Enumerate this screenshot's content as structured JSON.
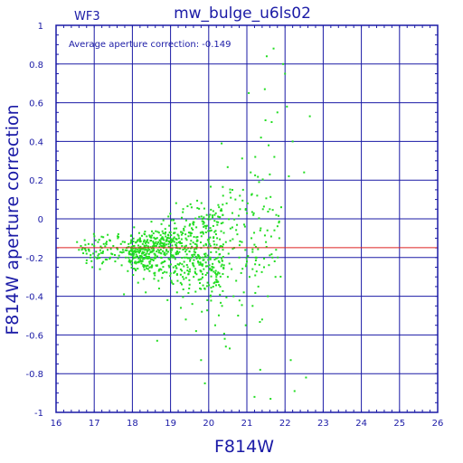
{
  "chart_data": {
    "type": "scatter",
    "title": "mw_bulge_u6ls02",
    "panel_label": "WF3",
    "annotation": "Average aperture correction:  -0.149",
    "xlabel": "F814W",
    "ylabel": "F814W aperture correction",
    "xlim": [
      16,
      26
    ],
    "ylim": [
      -1,
      1
    ],
    "x_ticks": [
      "16",
      "17",
      "18",
      "19",
      "20",
      "21",
      "22",
      "23",
      "24",
      "25",
      "26"
    ],
    "y_ticks": [
      "1",
      "0.8",
      "0.6",
      "0.4",
      "0.2",
      "0",
      "-0.2",
      "-0.4",
      "-0.6",
      "-0.8",
      "-1"
    ],
    "grid": true,
    "reference_line_y": -0.149,
    "colors": {
      "axes": "#1a1aa6",
      "points": "#22dd22",
      "reference_line": "#dd2222"
    },
    "series": [
      {
        "color": "#22dd22",
        "points": [
          [
            16.55,
            -0.12
          ],
          [
            16.6,
            -0.16
          ],
          [
            16.7,
            -0.15
          ],
          [
            16.75,
            -0.11
          ],
          [
            16.8,
            -0.18
          ],
          [
            16.85,
            -0.13
          ],
          [
            16.9,
            -0.2
          ],
          [
            16.95,
            -0.25
          ],
          [
            17.0,
            -0.14
          ],
          [
            17.05,
            -0.17
          ],
          [
            17.1,
            -0.12
          ],
          [
            17.1,
            -0.19
          ],
          [
            17.15,
            -0.26
          ],
          [
            17.2,
            -0.15
          ],
          [
            17.25,
            -0.13
          ],
          [
            17.3,
            -0.21
          ],
          [
            17.35,
            -0.16
          ],
          [
            17.4,
            -0.11
          ],
          [
            17.45,
            -0.18
          ],
          [
            17.5,
            -0.14
          ],
          [
            17.55,
            -0.22
          ],
          [
            17.6,
            -0.15
          ],
          [
            17.62,
            -0.1
          ],
          [
            17.65,
            -0.19
          ],
          [
            17.7,
            -0.13
          ],
          [
            17.72,
            -0.24
          ],
          [
            17.75,
            -0.16
          ],
          [
            17.78,
            -0.39
          ],
          [
            17.8,
            -0.12
          ],
          [
            17.83,
            -0.2
          ],
          [
            17.85,
            -0.15
          ],
          [
            17.88,
            -0.27
          ],
          [
            17.9,
            -0.13
          ],
          [
            17.92,
            -0.18
          ],
          [
            17.95,
            -0.22
          ],
          [
            17.97,
            -0.11
          ],
          [
            18.0,
            -0.16
          ],
          [
            18.02,
            -0.29
          ],
          [
            18.05,
            -0.14
          ],
          [
            18.08,
            -0.2
          ],
          [
            18.1,
            -0.12
          ],
          [
            18.12,
            -0.17
          ],
          [
            18.15,
            -0.33
          ],
          [
            18.17,
            -0.15
          ],
          [
            18.2,
            -0.1
          ],
          [
            18.22,
            -0.22
          ],
          [
            18.25,
            -0.18
          ],
          [
            18.27,
            -0.13
          ],
          [
            18.3,
            -0.25
          ],
          [
            18.32,
            -0.16
          ],
          [
            18.35,
            -0.38
          ],
          [
            18.37,
            -0.12
          ],
          [
            18.4,
            -0.2
          ],
          [
            18.42,
            -0.15
          ],
          [
            18.45,
            -0.27
          ],
          [
            18.47,
            -0.09
          ],
          [
            18.5,
            -0.17
          ],
          [
            18.52,
            -0.21
          ],
          [
            18.55,
            -0.14
          ],
          [
            18.57,
            -0.31
          ],
          [
            18.6,
            -0.19
          ],
          [
            18.62,
            -0.12
          ],
          [
            18.65,
            -0.24
          ],
          [
            18.67,
            -0.16
          ],
          [
            18.7,
            -0.36
          ],
          [
            18.72,
            -0.13
          ],
          [
            18.75,
            -0.2
          ],
          [
            18.77,
            -0.1
          ],
          [
            18.8,
            -0.28
          ],
          [
            18.82,
            -0.15
          ],
          [
            18.85,
            -0.22
          ],
          [
            18.87,
            -0.07
          ],
          [
            18.9,
            -0.18
          ],
          [
            18.92,
            -0.42
          ],
          [
            18.95,
            -0.13
          ],
          [
            18.97,
            -0.25
          ],
          [
            19.0,
            -0.16
          ],
          [
            19.02,
            -0.32
          ],
          [
            19.05,
            -0.11
          ],
          [
            19.07,
            -0.2
          ],
          [
            19.1,
            -0.05
          ],
          [
            19.12,
            -0.27
          ],
          [
            19.15,
            -0.15
          ],
          [
            19.17,
            -0.38
          ],
          [
            19.2,
            -0.18
          ],
          [
            19.22,
            -0.1
          ],
          [
            19.25,
            -0.23
          ],
          [
            19.27,
            -0.46
          ],
          [
            19.3,
            -0.14
          ],
          [
            19.32,
            -0.3
          ],
          [
            19.35,
            -0.06
          ],
          [
            19.37,
            -0.2
          ],
          [
            19.4,
            -0.52
          ],
          [
            19.42,
            -0.16
          ],
          [
            19.45,
            -0.25
          ],
          [
            19.47,
            -0.09
          ],
          [
            19.5,
            -0.34
          ],
          [
            19.52,
            -0.13
          ],
          [
            19.55,
            -0.2
          ],
          [
            19.57,
            -0.44
          ],
          [
            19.6,
            -0.03
          ],
          [
            19.62,
            -0.17
          ],
          [
            19.65,
            -0.28
          ],
          [
            19.67,
            -0.58
          ],
          [
            19.7,
            -0.11
          ],
          [
            19.72,
            -0.22
          ],
          [
            19.75,
            0.01
          ],
          [
            19.77,
            -0.36
          ],
          [
            19.8,
            -0.15
          ],
          [
            19.82,
            -0.48
          ],
          [
            19.85,
            -0.07
          ],
          [
            19.87,
            -0.26
          ],
          [
            19.9,
            -0.85
          ],
          [
            19.92,
            -0.18
          ],
          [
            19.95,
            0.02
          ],
          [
            19.97,
            -0.33
          ],
          [
            20.0,
            -0.12
          ],
          [
            20.02,
            -0.2
          ],
          [
            20.05,
            -0.4
          ],
          [
            20.07,
            -0.06
          ],
          [
            20.1,
            -0.25
          ],
          [
            20.12,
            0.04
          ],
          [
            20.15,
            -0.15
          ],
          [
            20.17,
            -0.55
          ],
          [
            20.2,
            -0.3
          ],
          [
            20.22,
            -0.1
          ],
          [
            20.25,
            -0.2
          ],
          [
            20.27,
            0.06
          ],
          [
            20.3,
            -0.35
          ],
          [
            20.32,
            -0.14
          ],
          [
            20.35,
            -0.45
          ],
          [
            20.37,
            -0.02
          ],
          [
            20.4,
            -0.24
          ],
          [
            20.42,
            -0.62
          ],
          [
            20.45,
            -0.12
          ],
          [
            20.47,
            0.08
          ],
          [
            20.5,
            -0.3
          ],
          [
            20.52,
            -0.18
          ],
          [
            20.55,
            -0.67
          ],
          [
            20.57,
            -0.05
          ],
          [
            20.6,
            -0.26
          ],
          [
            20.62,
            0.03
          ],
          [
            20.65,
            -0.4
          ],
          [
            20.67,
            -0.15
          ],
          [
            20.7,
            0.1
          ],
          [
            20.72,
            -0.32
          ],
          [
            20.75,
            -0.08
          ],
          [
            20.77,
            -0.5
          ],
          [
            20.8,
            -0.2
          ],
          [
            20.82,
            0.05
          ],
          [
            20.85,
            -0.28
          ],
          [
            20.87,
            -0.12
          ],
          [
            20.9,
            0.15
          ],
          [
            20.92,
            -0.38
          ],
          [
            20.95,
            -0.04
          ],
          [
            20.97,
            -0.55
          ],
          [
            21.0,
            -0.22
          ],
          [
            21.02,
            0.08
          ],
          [
            21.05,
            0.65
          ],
          [
            21.07,
            -0.3
          ],
          [
            21.1,
            0.24
          ],
          [
            21.12,
            -0.1
          ],
          [
            21.15,
            -0.45
          ],
          [
            21.17,
            0.02
          ],
          [
            21.2,
            -0.92
          ],
          [
            21.22,
            0.32
          ],
          [
            21.25,
            -0.2
          ],
          [
            21.27,
            0.12
          ],
          [
            21.3,
            -0.35
          ],
          [
            21.32,
            0.19
          ],
          [
            21.35,
            -0.06
          ],
          [
            21.37,
            0.42
          ],
          [
            21.4,
            -0.52
          ],
          [
            21.42,
            0.05
          ],
          [
            21.45,
            -0.25
          ],
          [
            21.47,
            0.67
          ],
          [
            21.5,
            -0.12
          ],
          [
            21.52,
            0.84
          ],
          [
            21.55,
            -0.4
          ],
          [
            21.57,
            0.38
          ],
          [
            21.6,
            0.05
          ],
          [
            21.62,
            -0.93
          ],
          [
            21.65,
            0.5
          ],
          [
            21.67,
            -0.2
          ],
          [
            21.7,
            0.88
          ],
          [
            21.72,
            0.32
          ],
          [
            21.75,
            -0.3
          ],
          [
            21.77,
            0.02
          ],
          [
            21.8,
            0.55
          ],
          [
            21.85,
            -0.1
          ],
          [
            21.9,
            0.06
          ],
          [
            21.95,
            0.8
          ],
          [
            22.0,
            0.75
          ],
          [
            22.05,
            0.58
          ],
          [
            22.1,
            0.22
          ],
          [
            22.15,
            -0.73
          ],
          [
            22.2,
            0.4
          ],
          [
            22.25,
            -0.89
          ],
          [
            22.5,
            0.24
          ],
          [
            22.55,
            -0.82
          ],
          [
            22.65,
            0.53
          ],
          [
            18.65,
            -0.63
          ],
          [
            19.8,
            -0.73
          ],
          [
            20.45,
            -0.66
          ],
          [
            21.35,
            -0.78
          ]
        ]
      }
    ]
  }
}
